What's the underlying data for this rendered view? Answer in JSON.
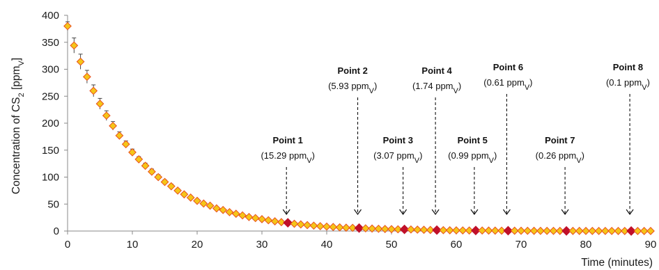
{
  "chart_data": {
    "type": "scatter",
    "title": "",
    "xlabel": "Time (minutes)",
    "ylabel": "Concentration of CS2 [ppmV]",
    "ylabel_parts": {
      "prefix": "Concentration of CS",
      "subscript": "2",
      "middle": " [ppm",
      "unit_subscript": "V",
      "suffix": "]"
    },
    "xlim": [
      0,
      90
    ],
    "ylim": [
      0,
      400
    ],
    "x_ticks": [
      0,
      10,
      20,
      30,
      40,
      50,
      60,
      70,
      80,
      90
    ],
    "y_ticks": [
      0,
      50,
      100,
      150,
      200,
      250,
      300,
      350,
      400
    ],
    "grid": false,
    "legend": "none",
    "series": [
      {
        "marker": "diamond",
        "color": "#F5C518",
        "edge_color": "#E8501E",
        "error_bars": true,
        "x": [
          0,
          1,
          2,
          3,
          4,
          5,
          6,
          7,
          8,
          9,
          10,
          11,
          12,
          13,
          14,
          15,
          16,
          17,
          18,
          19,
          20,
          21,
          22,
          23,
          24,
          25,
          26,
          27,
          28,
          29,
          30,
          31,
          32,
          33,
          34,
          35,
          36,
          37,
          38,
          39,
          40,
          41,
          42,
          43,
          44,
          45,
          46,
          47,
          48,
          49,
          50,
          51,
          52,
          53,
          54,
          55,
          56,
          57,
          58,
          59,
          60,
          61,
          62,
          63,
          64,
          65,
          66,
          67,
          68,
          69,
          70,
          71,
          72,
          73,
          74,
          75,
          76,
          77,
          78,
          79,
          80,
          81,
          82,
          83,
          84,
          85,
          86,
          87,
          88,
          89,
          90
        ],
        "y": [
          380,
          344,
          314,
          286,
          260,
          236,
          214,
          195,
          177,
          161,
          146,
          133,
          121,
          110,
          100,
          91,
          83,
          75,
          68,
          62,
          56,
          51,
          47,
          42,
          39,
          35,
          32,
          29,
          26,
          24,
          22,
          20,
          18,
          16.5,
          15.29,
          13.5,
          12.3,
          11,
          10,
          9,
          8.2,
          7.5,
          6.8,
          6.2,
          5.93,
          5.5,
          5,
          4.6,
          4.2,
          3.8,
          3.5,
          3.2,
          3.07,
          2.9,
          2.6,
          2.3,
          2,
          1.74,
          1.6,
          1.4,
          1.3,
          1.1,
          1.0,
          0.99,
          0.95,
          0.85,
          0.75,
          0.65,
          0.61,
          0.55,
          0.5,
          0.45,
          0.4,
          0.36,
          0.32,
          0.29,
          0.27,
          0.26,
          0.24,
          0.22,
          0.2,
          0.18,
          0.16,
          0.14,
          0.13,
          0.12,
          0.11,
          0.1,
          0.09,
          0.08,
          0.07
        ],
        "error": [
          8,
          14,
          14,
          12,
          11,
          10,
          9,
          8,
          7,
          6,
          6,
          5,
          5,
          5,
          4.5,
          4,
          4,
          3.5,
          3.5,
          3,
          3,
          3,
          2.5,
          2.5,
          2.5,
          2,
          2,
          2,
          2,
          1.5,
          1.5,
          1.5,
          1.5,
          1,
          1,
          1,
          1,
          1,
          1,
          1,
          0.8,
          0.8,
          0.8,
          0.8,
          0.8,
          0.5,
          0.5,
          0.5,
          0.5,
          0.5,
          0.5,
          0.5,
          0.5,
          0.5,
          0.5,
          0.5,
          0.5,
          0.5,
          0.5,
          0.5,
          0.5,
          0.5,
          0.5,
          0.5,
          0.5,
          0.5,
          0.5,
          0.5,
          0.5,
          0.5,
          0.5,
          0.5,
          0.5,
          0.5,
          0.5,
          0.5,
          0.5,
          0.5,
          0.5,
          0.5,
          0.5,
          0.5,
          0.5,
          0.5,
          0.5,
          0.5,
          0.5,
          0.5,
          0.5,
          0.5,
          0.5
        ]
      }
    ],
    "highlighted_points": {
      "color": "#C0102A",
      "points": [
        {
          "label": "Point 1",
          "value": "(15.29 ppm",
          "unit_sub": "V",
          "close": ")",
          "x": 34,
          "y": 15.29,
          "text_x": 34,
          "arrow_top": 65,
          "text_top": 110,
          "arrow_end": 10
        },
        {
          "label": "Point 2",
          "value": "(5.93 ppm",
          "unit_sub": "V",
          "close": ")",
          "x": 45,
          "y": 5.93,
          "text_x": 44,
          "arrow_top": 165,
          "text_top": 210,
          "arrow_end": 10
        },
        {
          "label": "Point 3",
          "value": "(3.07 ppm",
          "unit_sub": "V",
          "close": ")",
          "x": 52,
          "y": 3.07,
          "text_x": 51,
          "arrow_top": 60,
          "text_top": 110,
          "arrow_end": 10
        },
        {
          "label": "Point 4",
          "value": "(1.74 ppm",
          "unit_sub": "V",
          "close": ")",
          "x": 57,
          "y": 1.74,
          "text_x": 57,
          "arrow_top": 165,
          "text_top": 210,
          "arrow_end": 10
        },
        {
          "label": "Point 5",
          "value": "(0.99 ppm",
          "unit_sub": "V",
          "close": ")",
          "x": 63,
          "y": 0.99,
          "text_x": 62.5,
          "arrow_top": 60,
          "text_top": 110,
          "arrow_end": 10
        },
        {
          "label": "Point 6",
          "value": "(0.61 ppm",
          "unit_sub": "V",
          "close": ")",
          "x": 68,
          "y": 0.61,
          "text_x": 68,
          "arrow_top": 170,
          "text_top": 215,
          "arrow_end": 10
        },
        {
          "label": "Point 7",
          "value": "(0.26 ppm",
          "unit_sub": "V",
          "close": ")",
          "x": 77,
          "y": 0.26,
          "text_x": 76,
          "arrow_top": 60,
          "text_top": 110,
          "arrow_end": 10
        },
        {
          "label": "Point 8",
          "value": "(0.1 ppm",
          "unit_sub": "V",
          "close": ")",
          "x": 87,
          "y": 0.1,
          "text_x": 86.5,
          "arrow_top": 170,
          "text_top": 215,
          "arrow_end": 10
        }
      ]
    }
  }
}
